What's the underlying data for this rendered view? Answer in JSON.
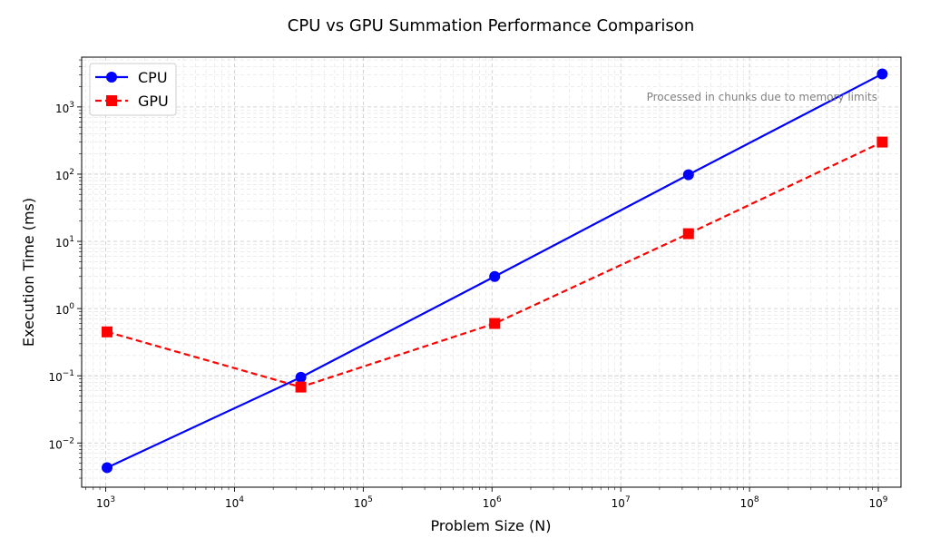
{
  "chart_data": {
    "type": "line",
    "title": "CPU vs GPU Summation Performance Comparison",
    "xlabel": "Problem Size (N)",
    "ylabel": "Execution Time (ms)",
    "xscale": "log",
    "yscale": "log",
    "xlim": [
      650,
      1500000000
    ],
    "ylim": [
      0.0022,
      5500
    ],
    "grid": true,
    "legend_position": "top-left",
    "annotation": "Processed in chunks due to memory limits",
    "x_tick_labels": [
      {
        "value": 1000,
        "base": "10",
        "exp": "3"
      },
      {
        "value": 10000,
        "base": "10",
        "exp": "4"
      },
      {
        "value": 100000,
        "base": "10",
        "exp": "5"
      },
      {
        "value": 1000000,
        "base": "10",
        "exp": "6"
      },
      {
        "value": 10000000,
        "base": "10",
        "exp": "7"
      },
      {
        "value": 100000000,
        "base": "10",
        "exp": "8"
      },
      {
        "value": 1000000000,
        "base": "10",
        "exp": "9"
      }
    ],
    "y_tick_labels": [
      {
        "value": 0.01,
        "base": "10",
        "exp": "−2"
      },
      {
        "value": 0.1,
        "base": "10",
        "exp": "−1"
      },
      {
        "value": 1,
        "base": "10",
        "exp": "0"
      },
      {
        "value": 10,
        "base": "10",
        "exp": "1"
      },
      {
        "value": 100,
        "base": "10",
        "exp": "2"
      },
      {
        "value": 1000,
        "base": "10",
        "exp": "3"
      }
    ],
    "series": [
      {
        "name": "CPU",
        "color": "#0000ff",
        "marker": "circle",
        "linestyle": "solid",
        "x": [
          1024,
          32768,
          1048576,
          33554432,
          1073741824
        ],
        "y": [
          0.0043,
          0.095,
          3.0,
          98,
          3100
        ]
      },
      {
        "name": "GPU",
        "color": "#ff0000",
        "marker": "square",
        "linestyle": "dashed",
        "x": [
          1024,
          32768,
          1048576,
          33554432,
          1073741824
        ],
        "y": [
          0.45,
          0.068,
          0.6,
          13,
          300
        ]
      }
    ]
  }
}
